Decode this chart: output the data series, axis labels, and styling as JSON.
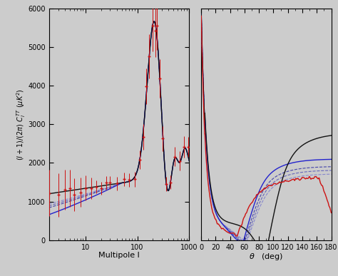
{
  "left_xlabel": "Multipole l",
  "left_ylabel": "(l+1)/(2\\pi) C_l^{TT} (\\muK^2)",
  "right_xlabel": "\\theta   (deg)",
  "bg_color": "#cccccc",
  "line_colors": {
    "black": "#111111",
    "blue": "#2222cc",
    "dash1": "#4444aa",
    "dash2": "#6666bb",
    "dash3": "#8888cc",
    "red": "#cc1111"
  },
  "left_xlim": [
    2,
    1000
  ],
  "left_ylim": [
    0,
    6000
  ],
  "right_xlim": [
    0,
    180
  ],
  "right_ylim": [
    -300,
    6000
  ]
}
